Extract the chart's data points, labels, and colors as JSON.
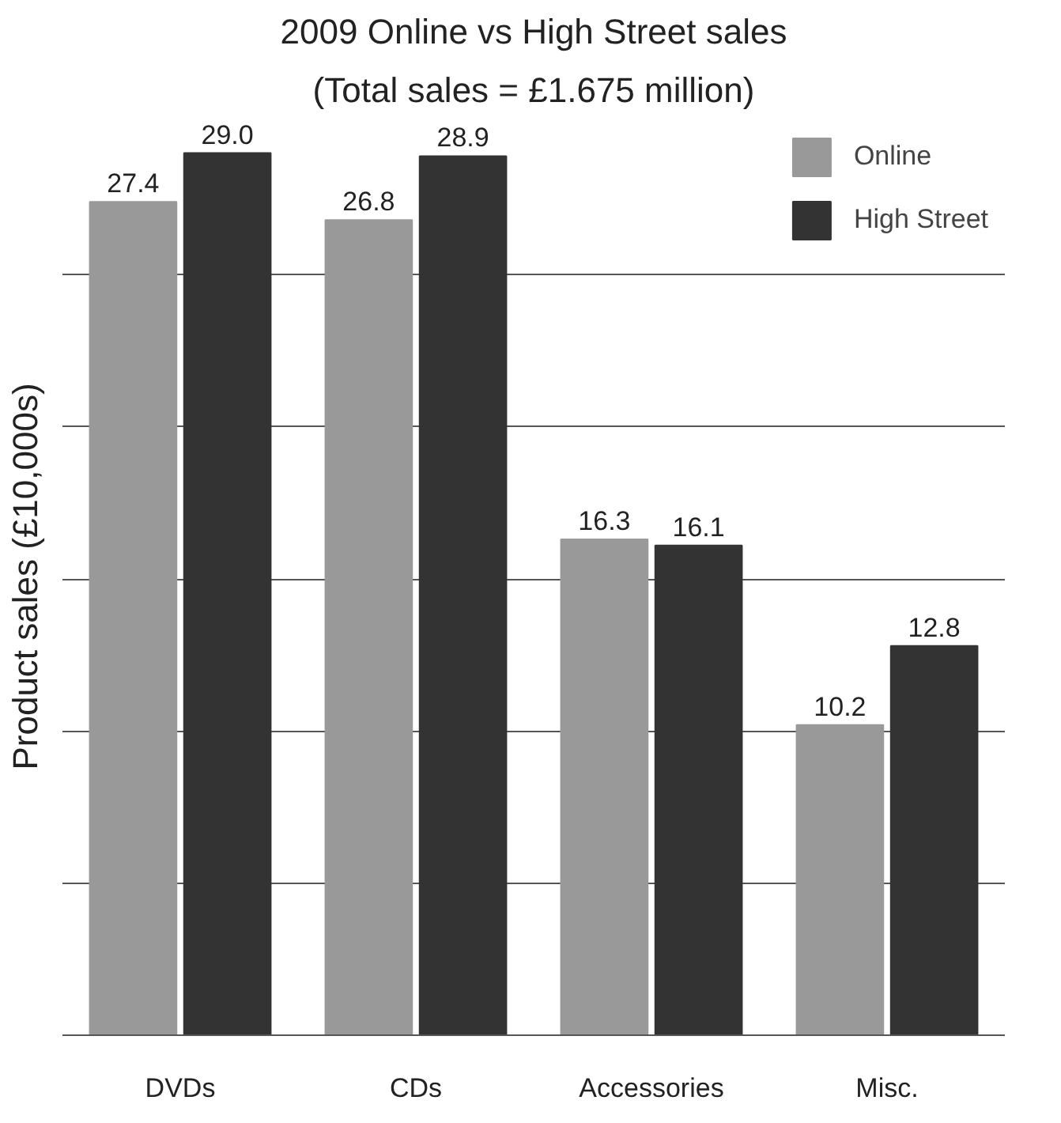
{
  "chart_data": {
    "type": "bar",
    "title": "2009 Online vs High Street sales",
    "subtitle": "(Total sales = £1.675 million)",
    "ylabel": "Product sales (£10,000s)",
    "categories": [
      "DVDs",
      "CDs",
      "Accessories",
      "Misc."
    ],
    "series": [
      {
        "name": "Online",
        "color": "#999999",
        "values": [
          27.4,
          26.8,
          16.3,
          10.2
        ],
        "value_labels": [
          "27.4",
          "26.8",
          "16.3",
          "10.2"
        ]
      },
      {
        "name": "High Street",
        "color": "#333333",
        "values": [
          29.0,
          28.9,
          16.1,
          12.8
        ],
        "value_labels": [
          "29.0",
          "28.9",
          "16.1",
          "12.8"
        ]
      }
    ],
    "yticks": [
      {
        "value": 0,
        "label": null
      },
      {
        "value": 5,
        "label": null
      },
      {
        "value": 10,
        "label": null
      },
      {
        "value": 15,
        "label": null
      },
      {
        "value": 20,
        "label": null
      },
      {
        "value": 25,
        "label": null
      }
    ],
    "grid": "y",
    "legend": "top right",
    "tick_labels": "x"
  }
}
